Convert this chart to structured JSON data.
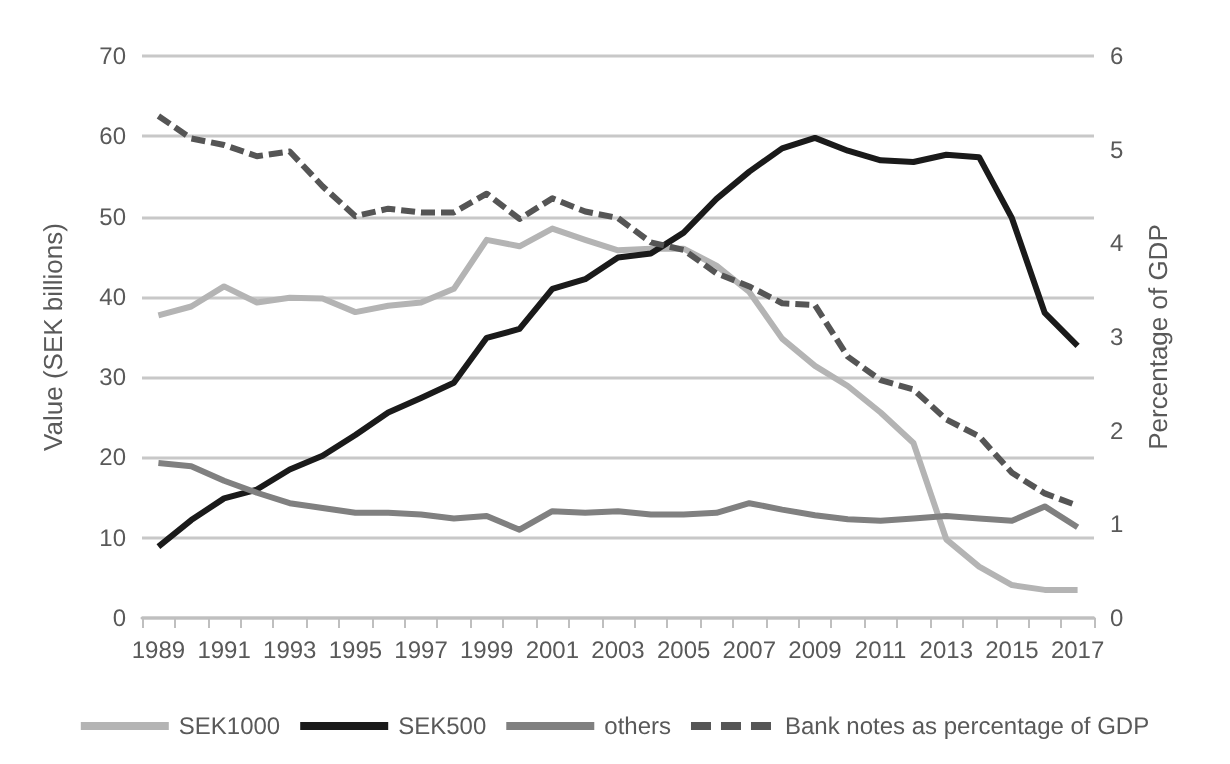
{
  "chart_data": {
    "type": "line",
    "ylabel": "Value (SEK billions)",
    "y2label": "Percentage of GDP",
    "categories": [
      "1989",
      null,
      "1991",
      null,
      "1993",
      null,
      "1995",
      null,
      "1997",
      null,
      "1999",
      null,
      "2001",
      null,
      "2003",
      null,
      "2005",
      null,
      "2007",
      null,
      "2009",
      null,
      "2011",
      null,
      "2013",
      null,
      "2015",
      null,
      "2017"
    ],
    "series": [
      {
        "name": "SEK1000",
        "color": "#b4b4b4",
        "values": [
          37.7,
          38.8,
          41.3,
          39.3,
          39.9,
          39.8,
          38.1,
          38.9,
          39.3,
          41,
          47.1,
          46.3,
          48.5,
          47.1,
          45.8,
          46,
          46,
          43.9,
          40.6,
          34.8,
          31.4,
          28.9,
          25.6,
          21.8,
          9.8,
          6.4,
          4.1,
          3.5,
          3.5
        ]
      },
      {
        "name": "SEK500",
        "color": "#1a1a1a",
        "values": [
          8.9,
          12.2,
          14.9,
          16,
          18.5,
          20.2,
          22.8,
          25.6,
          27.4,
          29.3,
          34.9,
          36,
          41,
          42.2,
          44.9,
          45.4,
          48,
          52.2,
          55.6,
          58.5,
          59.8,
          58.2,
          57,
          56.8,
          57.7,
          57.4,
          49.8,
          38,
          33.9
        ]
      },
      {
        "name": "others",
        "color": "#808080",
        "values": [
          19.3,
          18.9,
          17.1,
          15.6,
          14.3,
          13.7,
          13.1,
          13.1,
          12.9,
          12.4,
          12.7,
          11,
          13.3,
          13.1,
          13.3,
          12.9,
          12.9,
          13.1,
          14.3,
          13.5,
          12.8,
          12.3,
          12.1,
          12.4,
          12.7,
          12.4,
          12.1,
          13.9,
          11.3
        ]
      },
      {
        "name": "Bank notes as percentage of GDP",
        "color": "#555555",
        "axis": "y2",
        "line_style": "dashed",
        "values": [
          5.36,
          5.12,
          5.05,
          4.93,
          4.98,
          4.61,
          4.29,
          4.37,
          4.33,
          4.33,
          4.53,
          4.26,
          4.48,
          4.34,
          4.27,
          4.01,
          3.93,
          3.68,
          3.54,
          3.36,
          3.34,
          2.79,
          2.54,
          2.44,
          2.12,
          1.94,
          1.55,
          1.33,
          1.2
        ]
      }
    ],
    "ylim": [
      0,
      70
    ],
    "yticks": [
      0,
      10,
      20,
      30,
      40,
      50,
      60,
      70
    ],
    "y2lim": [
      0,
      6
    ],
    "y2ticks": [
      0,
      1,
      2,
      3,
      4,
      5,
      6
    ],
    "grid": "y",
    "legend": "bottom",
    "marker": "none"
  }
}
